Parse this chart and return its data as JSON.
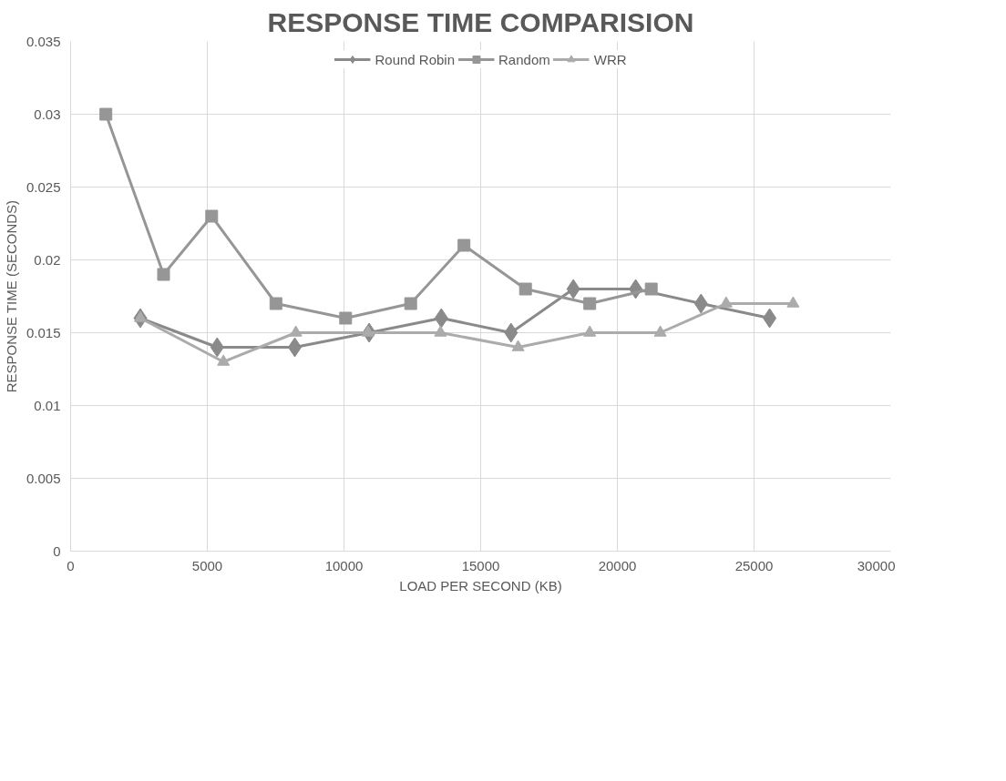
{
  "chart_data": {
    "type": "line",
    "title": "RESPONSE TIME COMPARISION",
    "xlabel": "LOAD PER SECOND (KB)",
    "ylabel": "RESPONSE TIME (SECONDS)",
    "xlim": [
      0,
      30000
    ],
    "xticks": [
      0,
      5000,
      10000,
      15000,
      20000,
      25000,
      30000
    ],
    "ylim": [
      0,
      0.035
    ],
    "yticks": [
      0,
      0.005,
      0.01,
      0.015,
      0.02,
      0.025,
      0.03,
      0.035
    ],
    "grid": true,
    "legend": "top",
    "line_style": "solid",
    "series": [
      {
        "name": "Round Robin",
        "color": "#8a8a8a",
        "marker": "diamond",
        "x": [
          2550,
          5360,
          8200,
          10920,
          13560,
          16110,
          18390,
          20670,
          23060,
          25570
        ],
        "values": [
          0.016,
          0.014,
          0.014,
          0.015,
          0.016,
          0.015,
          0.018,
          0.018,
          0.017,
          0.016
        ]
      },
      {
        "name": "Random",
        "color": "#969696",
        "marker": "square",
        "x": [
          1290,
          3400,
          5160,
          7510,
          10060,
          12440,
          14390,
          16640,
          18990,
          21240
        ],
        "values": [
          0.03,
          0.019,
          0.023,
          0.017,
          0.016,
          0.017,
          0.021,
          0.018,
          0.017,
          0.018
        ]
      },
      {
        "name": "WRR",
        "color": "#ababab",
        "marker": "triangle",
        "x": [
          2550,
          5590,
          8240,
          10880,
          13530,
          16370,
          18990,
          21570,
          23980,
          26430
        ],
        "values": [
          0.016,
          0.013,
          0.015,
          0.015,
          0.015,
          0.014,
          0.015,
          0.015,
          0.017,
          0.017
        ]
      }
    ]
  }
}
